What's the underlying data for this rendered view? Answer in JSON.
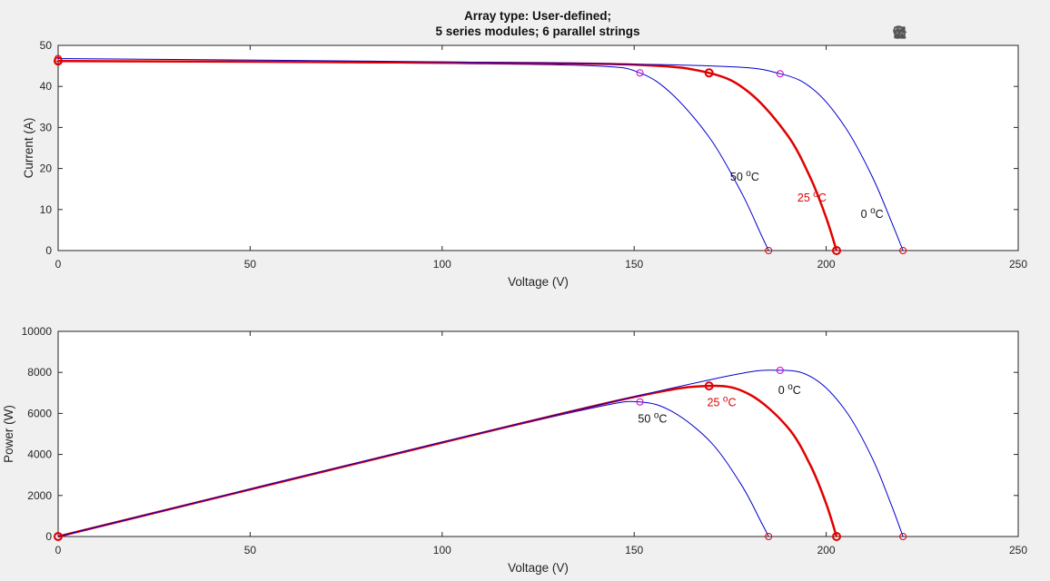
{
  "title": [
    "Array type: User-defined;",
    "5 series modules; 6 parallel strings"
  ],
  "toolbar": {
    "icons": [
      "brush-export-icon",
      "brush-icon",
      "datatip-icon",
      "pan-hand-icon",
      "zoom-in-icon",
      "zoom-out-icon",
      "home-icon"
    ]
  },
  "colors": {
    "hot": "#0000cc",
    "ref": "#e00000",
    "cold": "#0000cc",
    "mpp_marker": "#cc00cc"
  },
  "chart_data": [
    {
      "type": "line",
      "xlabel": "Voltage (V)",
      "ylabel": "Current (A)",
      "xlim": [
        0,
        250
      ],
      "ylim": [
        0,
        50
      ],
      "xticks": [
        0,
        50,
        100,
        150,
        200,
        250
      ],
      "yticks": [
        0,
        10,
        20,
        30,
        40,
        50
      ],
      "grid": false,
      "series": [
        {
          "name": "50 oC",
          "x": [
            0,
            100,
            140,
            151.5,
            160,
            170,
            178,
            183,
            185
          ],
          "y": [
            46.3,
            45.6,
            45.0,
            43.3,
            38.0,
            27.0,
            14.0,
            4.0,
            0
          ]
        },
        {
          "name": "25 oC",
          "x": [
            0,
            100,
            150,
            169.5,
            180,
            190,
            196,
            200,
            202.7
          ],
          "y": [
            46.2,
            45.8,
            45.3,
            43.3,
            38.5,
            28.0,
            17.5,
            8.0,
            0
          ]
        },
        {
          "name": "0 oC",
          "x": [
            0,
            100,
            170,
            188,
            197,
            205,
            212,
            217,
            220
          ],
          "y": [
            46.8,
            46.0,
            45.0,
            43.1,
            39.0,
            30.0,
            18.0,
            7.0,
            0
          ]
        }
      ],
      "annotations": [
        {
          "text": "50 ",
          "sup": "o",
          "after": "C",
          "x": 175,
          "y": 17,
          "series": "50 oC"
        },
        {
          "text": "25 ",
          "sup": "o",
          "after": "C",
          "x": 192.5,
          "y": 12,
          "series": "25 oC"
        },
        {
          "text": "0 ",
          "sup": "o",
          "after": "C",
          "x": 209,
          "y": 8,
          "series": "0 oC"
        }
      ],
      "markers": [
        [
          0,
          46.3
        ],
        [
          151.5,
          43.3
        ],
        [
          185,
          0
        ],
        [
          0,
          46.2
        ],
        [
          169.5,
          43.3
        ],
        [
          202.7,
          0
        ],
        [
          0,
          46.8
        ],
        [
          188,
          43.1
        ],
        [
          220,
          0
        ]
      ]
    },
    {
      "type": "line",
      "xlabel": "Voltage (V)",
      "ylabel": "Power (W)",
      "xlim": [
        0,
        250
      ],
      "ylim": [
        0,
        10000
      ],
      "xticks": [
        0,
        50,
        100,
        150,
        200,
        250
      ],
      "yticks": [
        0,
        2000,
        4000,
        6000,
        8000,
        10000
      ],
      "grid": false,
      "series": [
        {
          "name": "50 oC",
          "x": [
            0,
            100,
            140,
            151.5,
            160,
            170,
            178,
            183,
            185
          ],
          "y": [
            0,
            4560,
            6300,
            6560,
            6080,
            4590,
            2490,
            730,
            0
          ]
        },
        {
          "name": "25 oC",
          "x": [
            0,
            100,
            150,
            169.5,
            180,
            190,
            196,
            200,
            202.7
          ],
          "y": [
            0,
            4580,
            6800,
            7340,
            6930,
            5320,
            3430,
            1600,
            0
          ]
        },
        {
          "name": "0 oC",
          "x": [
            0,
            100,
            170,
            188,
            197,
            205,
            212,
            217,
            220
          ],
          "y": [
            0,
            4600,
            7650,
            8100,
            7680,
            6150,
            3820,
            1520,
            0
          ]
        }
      ],
      "annotations": [
        {
          "text": "50 ",
          "sup": "o",
          "after": "C",
          "x": 151,
          "y": 5550,
          "series": "50 oC"
        },
        {
          "text": "25 ",
          "sup": "o",
          "after": "C",
          "x": 169,
          "y": 6350,
          "series": "25 oC"
        },
        {
          "text": "0 ",
          "sup": "o",
          "after": "C",
          "x": 187.5,
          "y": 6950,
          "series": "0 oC"
        }
      ],
      "markers": [
        [
          0,
          0
        ],
        [
          151.5,
          6560
        ],
        [
          185,
          0
        ],
        [
          0,
          0
        ],
        [
          169.5,
          7340
        ],
        [
          202.7,
          0
        ],
        [
          0,
          0
        ],
        [
          188,
          8100
        ],
        [
          220,
          0
        ]
      ]
    }
  ]
}
